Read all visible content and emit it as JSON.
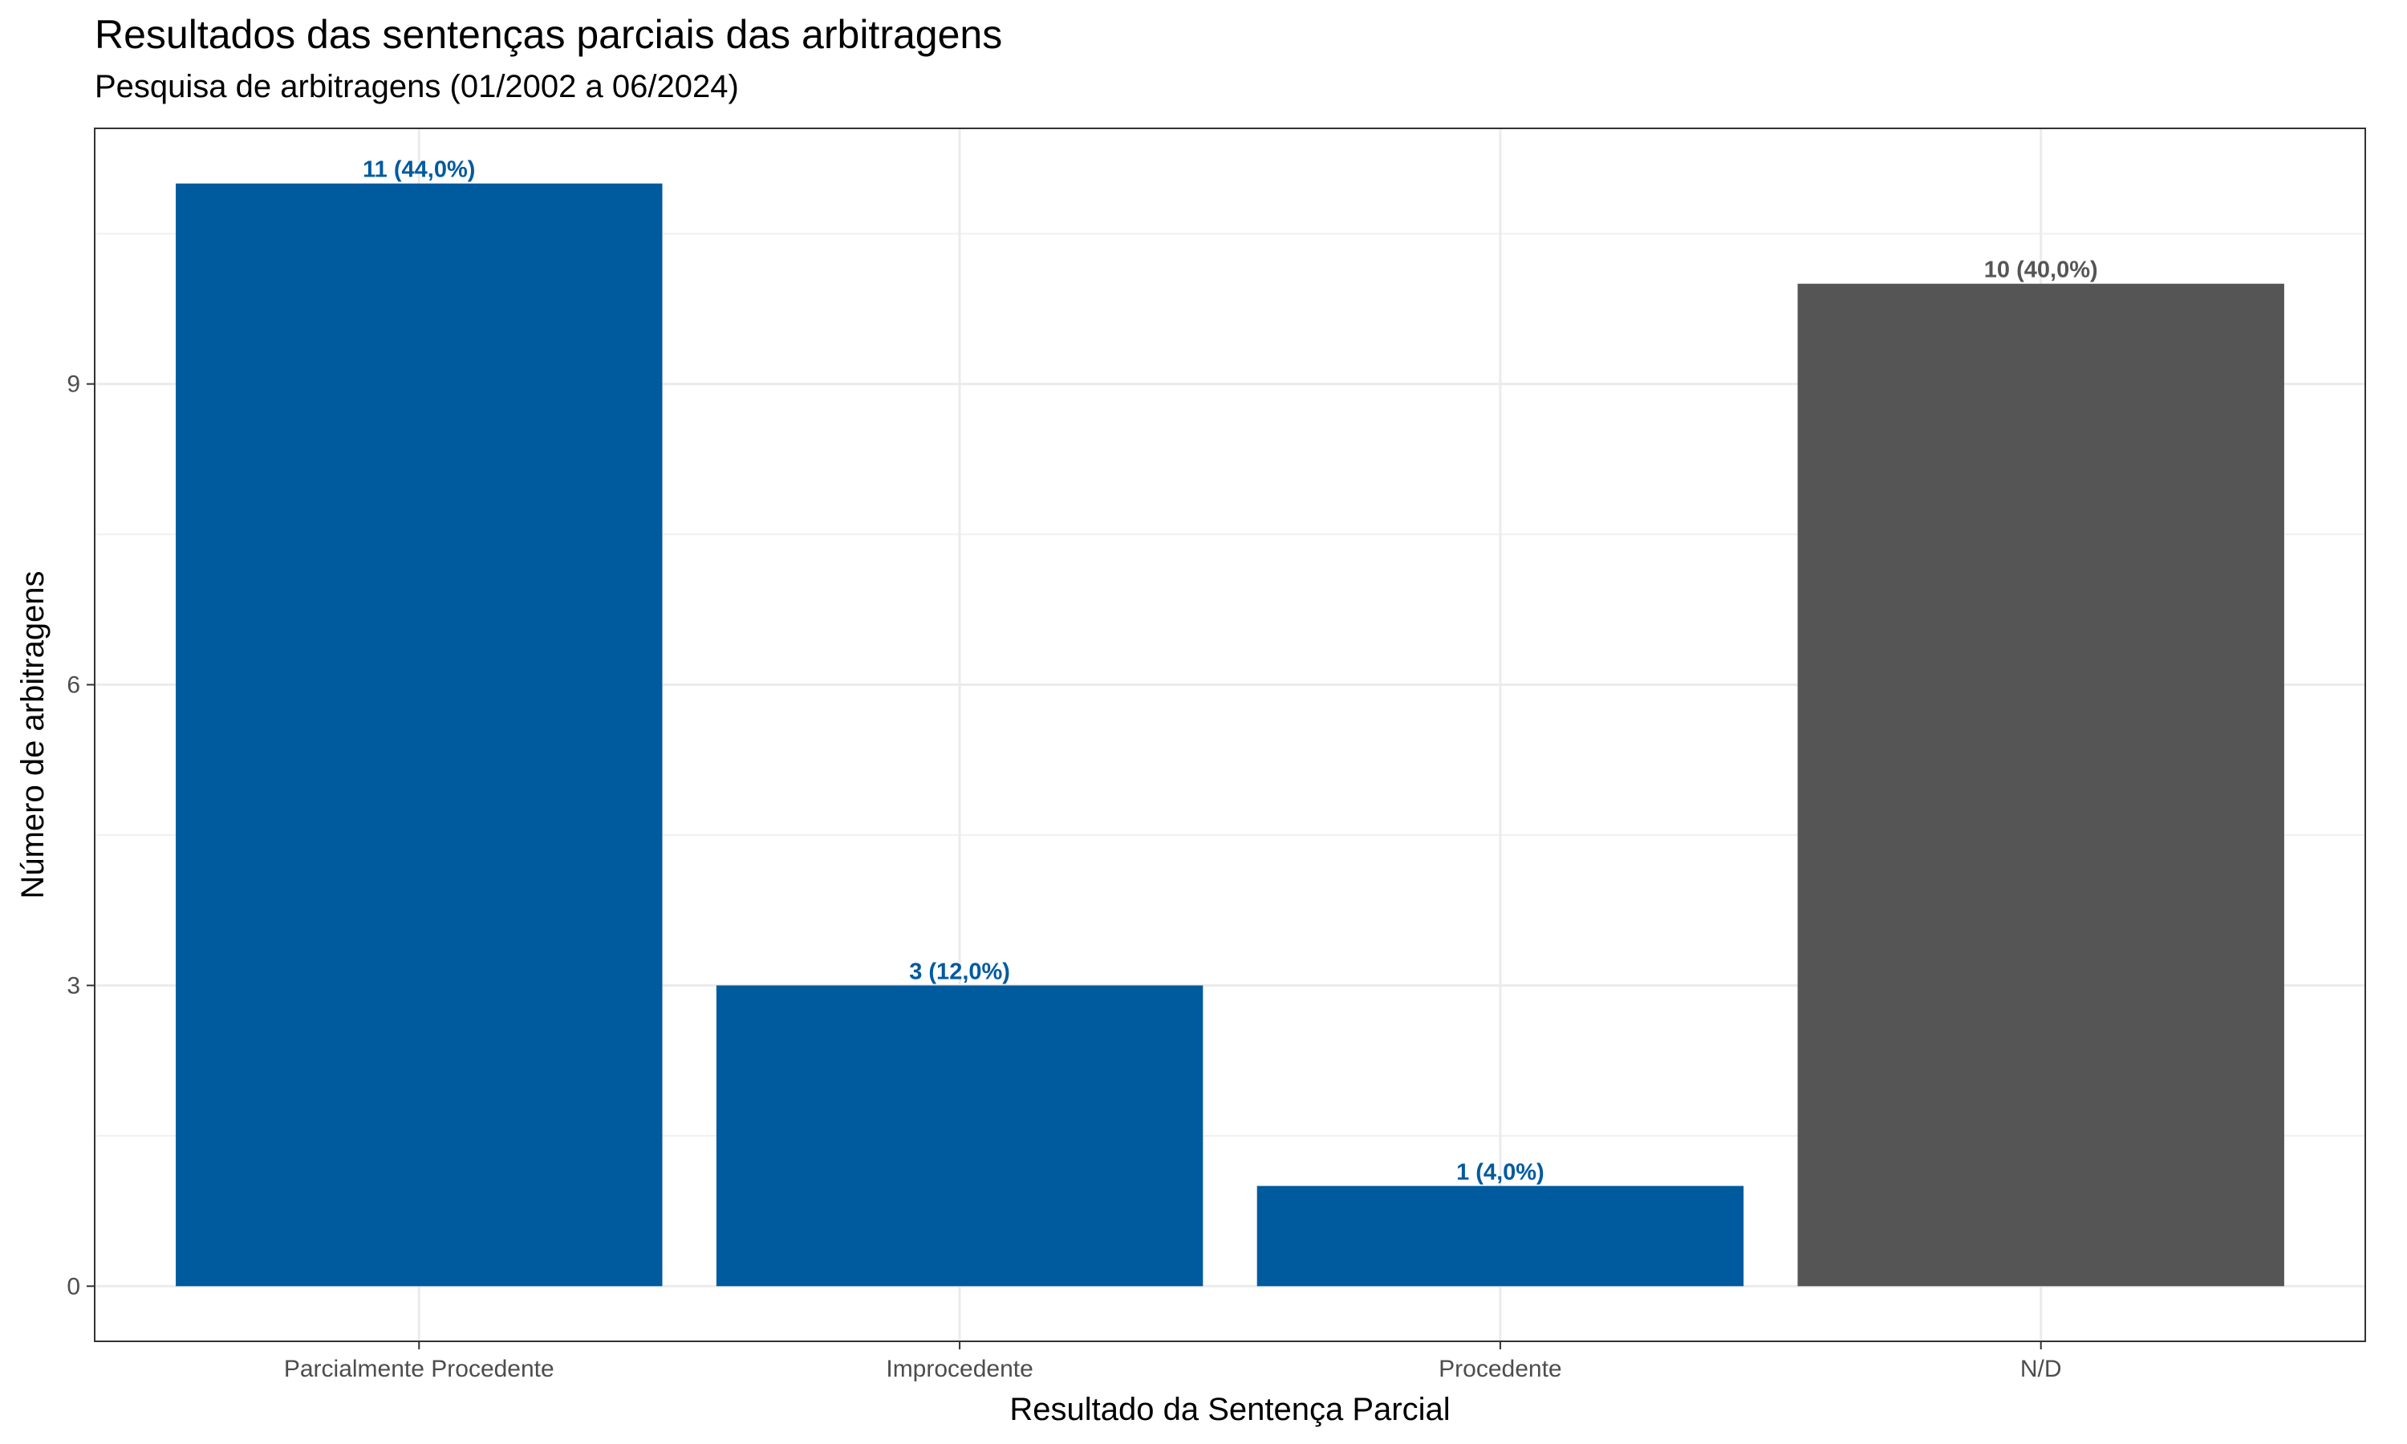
{
  "chart_data": {
    "type": "bar",
    "title": "Resultados das sentenças parciais das arbitragens",
    "subtitle": "Pesquisa de arbitragens (01/2002 a 06/2024)",
    "xlabel": "Resultado da Sentença Parcial",
    "ylabel": "Número de arbitragens",
    "categories": [
      "Parcialmente Procedente",
      "Improcedente",
      "Procedente",
      "N/D"
    ],
    "values": [
      11,
      3,
      1,
      10
    ],
    "labels": [
      "11 (44,0%)",
      "3 (12,0%)",
      "1 (4,0%)",
      "10 (40,0%)"
    ],
    "colors": [
      "#005a9e",
      "#005a9e",
      "#005a9e",
      "#555555"
    ],
    "yticks": [
      0,
      3,
      6,
      9
    ],
    "ylim": [
      -0.55,
      11.55
    ],
    "grid": true,
    "legend": "none"
  }
}
